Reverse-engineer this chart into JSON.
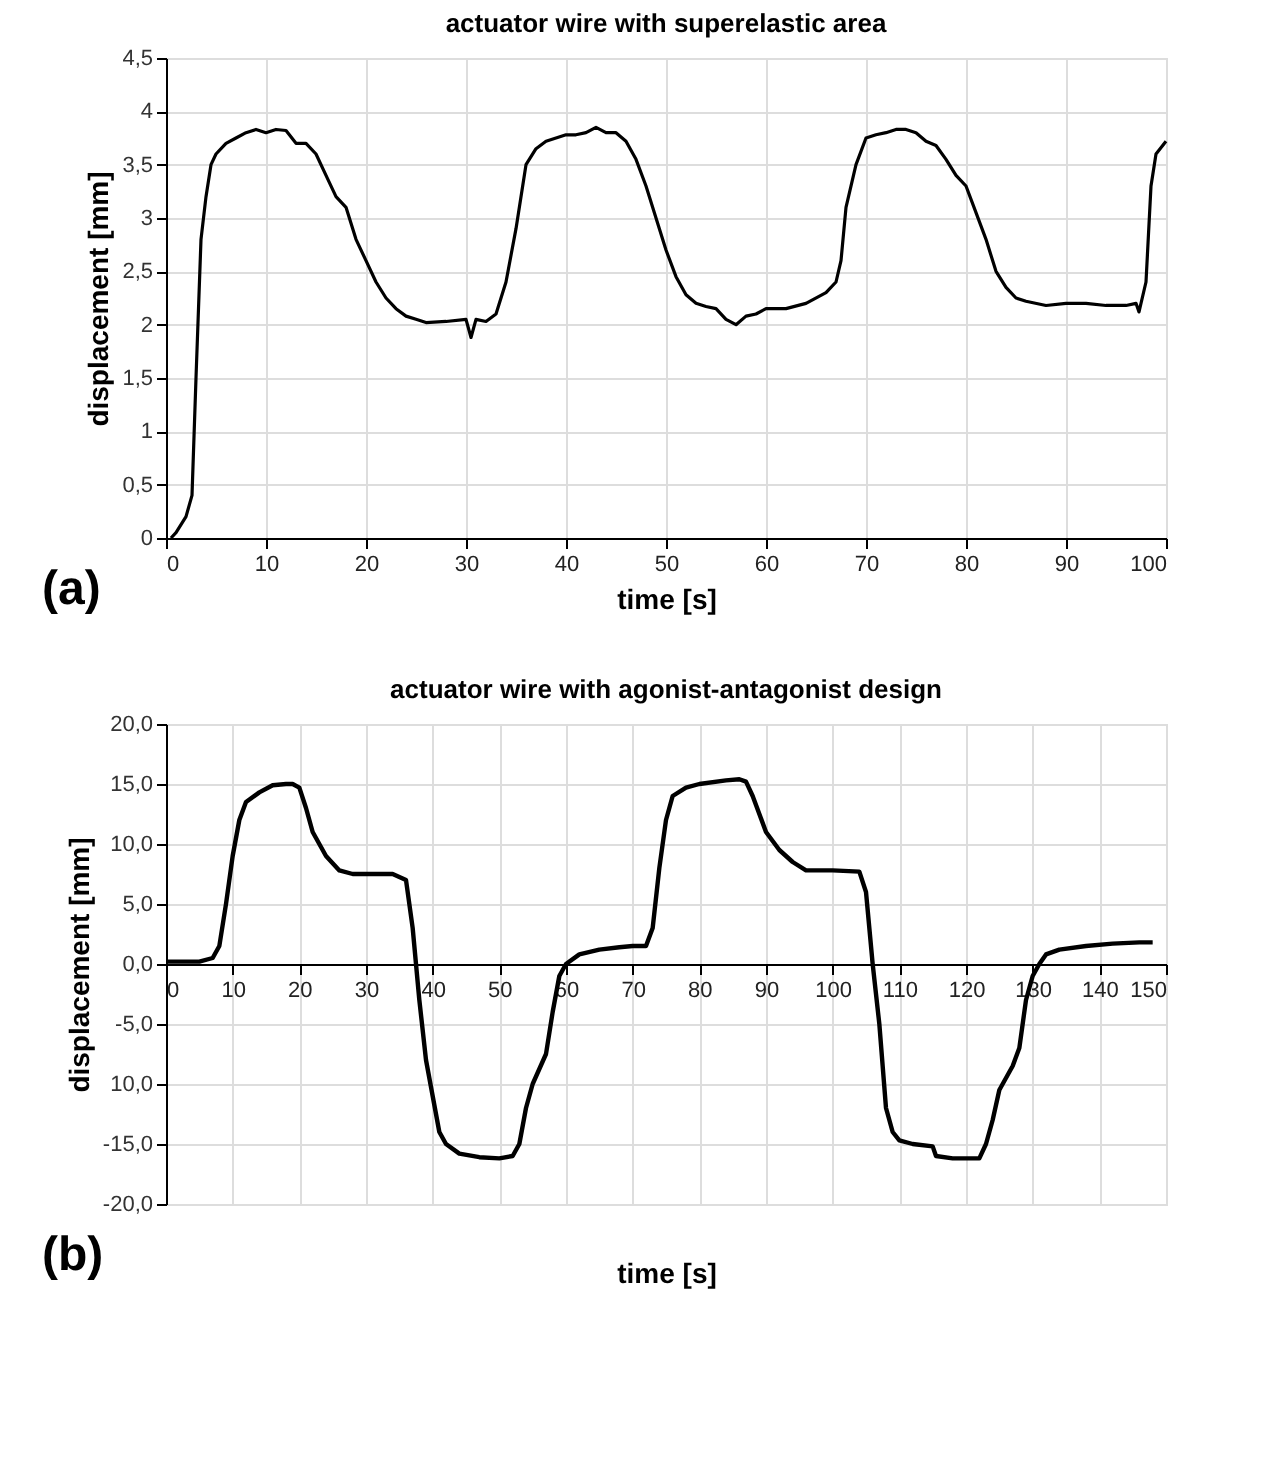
{
  "chart_data": [
    {
      "type": "line",
      "title": "actuator wire with superelastic area",
      "xlabel": "time [s]",
      "ylabel": "displacement [mm]",
      "annotations": [
        "(a)"
      ],
      "grid": true,
      "xlim": [
        0,
        100
      ],
      "xticks": [
        0,
        10,
        20,
        30,
        40,
        50,
        60,
        70,
        80,
        90,
        100
      ],
      "ylim": [
        0,
        4.5
      ],
      "yticks": [
        0,
        {
          "value": 0.5,
          "label": "0,5"
        },
        1,
        {
          "value": 1.5,
          "label": "1,5"
        },
        2,
        {
          "value": 2.5,
          "label": "2,5"
        },
        3,
        {
          "value": 3.5,
          "label": "3,5"
        },
        4,
        {
          "value": 4.5,
          "label": "4,5"
        }
      ],
      "series": [
        {
          "color": "#000000",
          "x": [
            0.5,
            1,
            2,
            2.6,
            3,
            3.5,
            4,
            4.5,
            5,
            6,
            7,
            8,
            9,
            10,
            11,
            12,
            13,
            14,
            15,
            16,
            17,
            18,
            19,
            20,
            21,
            22,
            23,
            24,
            25,
            26,
            28,
            30,
            30.5,
            31,
            32,
            33,
            34,
            35,
            36,
            37,
            38,
            39,
            40,
            41,
            42,
            43,
            44,
            45,
            46,
            47,
            48,
            49,
            50,
            51,
            52,
            53,
            54,
            55,
            56,
            57,
            58,
            59,
            60,
            62,
            64,
            66,
            67,
            67.5,
            68,
            69,
            70,
            71,
            72,
            73,
            74,
            75,
            76,
            77,
            78,
            79,
            80,
            81,
            82,
            83,
            84,
            85,
            86,
            88,
            90,
            92,
            94,
            96,
            97,
            97.3,
            98,
            98.5,
            99,
            100
          ],
          "values": [
            0,
            0.05,
            0.2,
            0.4,
            1.5,
            2.8,
            3.2,
            3.5,
            3.6,
            3.7,
            3.75,
            3.8,
            3.83,
            3.8,
            3.83,
            3.82,
            3.7,
            3.7,
            3.6,
            3.4,
            3.2,
            3.1,
            2.8,
            2.6,
            2.4,
            2.25,
            2.15,
            2.08,
            2.05,
            2.02,
            2.03,
            2.05,
            1.88,
            2.05,
            2.03,
            2.1,
            2.4,
            2.9,
            3.5,
            3.65,
            3.72,
            3.75,
            3.78,
            3.78,
            3.8,
            3.85,
            3.8,
            3.8,
            3.72,
            3.55,
            3.3,
            3.0,
            2.7,
            2.45,
            2.28,
            2.2,
            2.17,
            2.15,
            2.05,
            2.0,
            2.08,
            2.1,
            2.15,
            2.15,
            2.2,
            2.3,
            2.4,
            2.6,
            3.1,
            3.5,
            3.75,
            3.78,
            3.8,
            3.83,
            3.83,
            3.8,
            3.72,
            3.68,
            3.55,
            3.4,
            3.3,
            3.05,
            2.8,
            2.5,
            2.35,
            2.25,
            2.22,
            2.18,
            2.2,
            2.2,
            2.18,
            2.18,
            2.2,
            2.12,
            2.4,
            3.3,
            3.6,
            3.72
          ]
        }
      ]
    },
    {
      "type": "line",
      "title": "actuator wire with agonist-antagonist design",
      "xlabel": "time [s]",
      "ylabel": "displacement [mm]",
      "annotations": [
        "(b)"
      ],
      "grid": true,
      "xlim": [
        0,
        150
      ],
      "xticks": [
        0,
        10,
        20,
        30,
        40,
        50,
        60,
        70,
        80,
        90,
        100,
        110,
        120,
        130,
        140,
        150
      ],
      "ylim": [
        -20,
        20
      ],
      "yticks": [
        {
          "value": -20,
          "label": "-20,0"
        },
        {
          "value": -15,
          "label": "-15,0"
        },
        {
          "value": -10,
          "label": "10,0"
        },
        {
          "value": -5,
          "label": "-5,0"
        },
        {
          "value": 0,
          "label": "0,0"
        },
        {
          "value": 5,
          "label": "5,0"
        },
        {
          "value": 10,
          "label": "10,0"
        },
        {
          "value": 15,
          "label": "15,0"
        },
        {
          "value": 20,
          "label": "20,0"
        }
      ],
      "series": [
        {
          "color": "#000000",
          "x": [
            0,
            5,
            7,
            8,
            9,
            10,
            11,
            12,
            14,
            16,
            18,
            19,
            20,
            21,
            22,
            24,
            26,
            28,
            30,
            34,
            36,
            37,
            38,
            39,
            40,
            41,
            42,
            44,
            47,
            50,
            52,
            53,
            54,
            55,
            57,
            58,
            59,
            60,
            62,
            65,
            68,
            70,
            72,
            73,
            74,
            75,
            76,
            78,
            80,
            84,
            86,
            87,
            88,
            90,
            92,
            94,
            96,
            100,
            104,
            105,
            106,
            107,
            108,
            109,
            110,
            112,
            115,
            115.5,
            118,
            122,
            123,
            124,
            125,
            127,
            128,
            129,
            130,
            131,
            132,
            134,
            138,
            142,
            146,
            148
          ],
          "values": [
            0.2,
            0.2,
            0.5,
            1.5,
            5,
            9,
            12,
            13.5,
            14.3,
            14.9,
            15,
            15,
            14.7,
            13,
            11,
            9,
            7.8,
            7.5,
            7.5,
            7.5,
            7,
            3,
            -3,
            -8,
            -11,
            -14,
            -15,
            -15.8,
            -16.1,
            -16.2,
            -16,
            -15,
            -12,
            -10,
            -7.5,
            -4,
            -1,
            0,
            0.8,
            1.2,
            1.4,
            1.5,
            1.5,
            3,
            8,
            12,
            14,
            14.7,
            15,
            15.3,
            15.4,
            15.2,
            14,
            11,
            9.5,
            8.5,
            7.8,
            7.8,
            7.7,
            6,
            0,
            -5,
            -12,
            -14,
            -14.7,
            -15,
            -15.2,
            -16,
            -16.2,
            -16.2,
            -15,
            -13,
            -10.5,
            -8.5,
            -7,
            -3,
            -1,
            0,
            0.8,
            1.2,
            1.5,
            1.7,
            1.8,
            1.8
          ]
        }
      ]
    }
  ]
}
